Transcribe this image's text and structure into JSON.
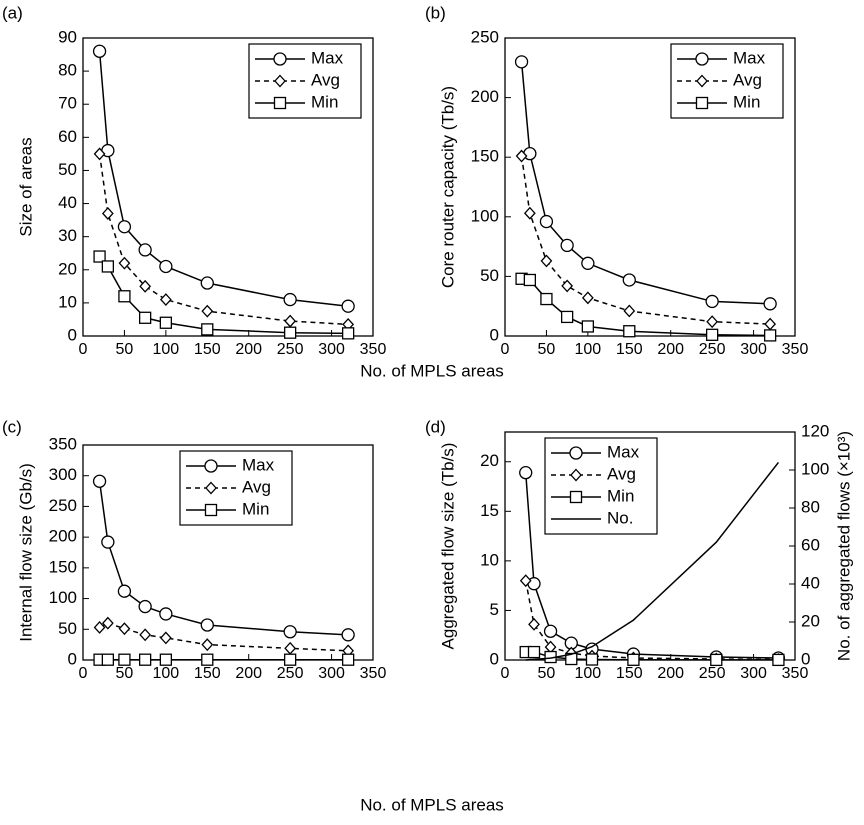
{
  "chart_data": [
    {
      "type": "line",
      "label": "(a)",
      "ylabel": "Size of areas",
      "xlabel": "No. of MPLS areas",
      "x": [
        20,
        30,
        50,
        75,
        100,
        150,
        250,
        320
      ],
      "xlim": [
        0,
        350
      ],
      "xticks": [
        0,
        50,
        100,
        150,
        200,
        250,
        300,
        350
      ],
      "ylim": [
        0,
        90
      ],
      "yticks": [
        0,
        10,
        20,
        30,
        40,
        50,
        60,
        70,
        80,
        90
      ],
      "legend": "upper right",
      "series": [
        {
          "name": "Max",
          "color": "#000000",
          "marker": "circle",
          "dash": false,
          "values": [
            86,
            56,
            33,
            26,
            21,
            16,
            11,
            9
          ]
        },
        {
          "name": "Avg",
          "color": "#000000",
          "marker": "diamond",
          "dash": true,
          "values": [
            55,
            37,
            22,
            15,
            11,
            7.5,
            4.5,
            3.5
          ]
        },
        {
          "name": "Min",
          "color": "#000000",
          "marker": "square",
          "dash": false,
          "values": [
            24,
            21,
            12,
            5.5,
            4,
            2,
            1,
            0.8
          ]
        }
      ]
    },
    {
      "type": "line",
      "label": "(b)",
      "ylabel": "Core router capacity (Tb/s)",
      "x": [
        20,
        30,
        50,
        75,
        100,
        150,
        250,
        320
      ],
      "xlim": [
        0,
        350
      ],
      "xticks": [
        0,
        50,
        100,
        150,
        200,
        250,
        300,
        350
      ],
      "ylim": [
        0,
        250
      ],
      "yticks": [
        0,
        50,
        100,
        150,
        200,
        250
      ],
      "legend": "upper right",
      "series": [
        {
          "name": "Max",
          "color": "#000000",
          "marker": "circle",
          "dash": false,
          "values": [
            230,
            153,
            96,
            76,
            61,
            47,
            29,
            27
          ]
        },
        {
          "name": "Avg",
          "color": "#000000",
          "marker": "diamond",
          "dash": true,
          "values": [
            151,
            103,
            63,
            42,
            32,
            21,
            12,
            10
          ]
        },
        {
          "name": "Min",
          "color": "#000000",
          "marker": "square",
          "dash": false,
          "values": [
            48,
            47,
            31,
            16,
            8,
            4,
            1,
            0.5
          ]
        }
      ]
    },
    {
      "type": "line",
      "label": "(c)",
      "ylabel": "Internal flow size (Gb/s)",
      "xlabel": "No. of MPLS areas",
      "x": [
        20,
        30,
        50,
        75,
        100,
        150,
        250,
        320
      ],
      "xlim": [
        0,
        350
      ],
      "xticks": [
        0,
        50,
        100,
        150,
        200,
        250,
        300,
        350
      ],
      "ylim": [
        0,
        350
      ],
      "yticks": [
        0,
        50,
        100,
        150,
        200,
        250,
        300,
        350
      ],
      "legend": "upper center",
      "series": [
        {
          "name": "Max",
          "color": "#000000",
          "marker": "circle",
          "dash": false,
          "values": [
            291,
            192,
            112,
            87,
            75,
            57,
            46,
            41
          ]
        },
        {
          "name": "Avg",
          "color": "#000000",
          "marker": "diamond",
          "dash": true,
          "values": [
            53,
            60,
            51,
            41,
            36,
            25,
            19,
            15
          ]
        },
        {
          "name": "Min",
          "color": "#000000",
          "marker": "square",
          "dash": false,
          "values": [
            0.5,
            0.5,
            0.5,
            0.5,
            0.5,
            0.5,
            0.5,
            0.5
          ]
        }
      ]
    },
    {
      "type": "line",
      "label": "(d)",
      "ylabel": "Aggregated flow size (Tb/s)",
      "y2label": "No. of aggregated flows (×10³)",
      "x": [
        25,
        35,
        55,
        80,
        105,
        155,
        255,
        330
      ],
      "xlim": [
        0,
        350
      ],
      "xticks": [
        0,
        50,
        100,
        150,
        200,
        250,
        300,
        350
      ],
      "ylim": [
        0,
        23
      ],
      "yticks": [
        0,
        5,
        10,
        15,
        20
      ],
      "y2lim": [
        0,
        120
      ],
      "y2ticks": [
        0,
        20,
        40,
        60,
        80,
        100,
        120
      ],
      "legend": "upper left",
      "series": [
        {
          "name": "Max",
          "color": "#000000",
          "marker": "circle",
          "dash": false,
          "values": [
            18.9,
            7.7,
            2.9,
            1.7,
            1.1,
            0.6,
            0.3,
            0.2
          ]
        },
        {
          "name": "Avg",
          "color": "#000000",
          "marker": "diamond",
          "dash": true,
          "values": [
            8,
            3.6,
            1.3,
            0.7,
            0.4,
            0.2,
            0.1,
            0.05
          ]
        },
        {
          "name": "Min",
          "color": "#000000",
          "marker": "square",
          "dash": false,
          "values": [
            0.8,
            0.8,
            0.3,
            0.1,
            0.05,
            0.02,
            0.01,
            0.01
          ]
        },
        {
          "name": "No.",
          "color": "#000000",
          "marker": "none",
          "dash": false,
          "axis": "y2",
          "values": [
            0,
            0.3,
            1,
            3,
            7,
            21,
            62,
            104
          ]
        }
      ]
    }
  ]
}
